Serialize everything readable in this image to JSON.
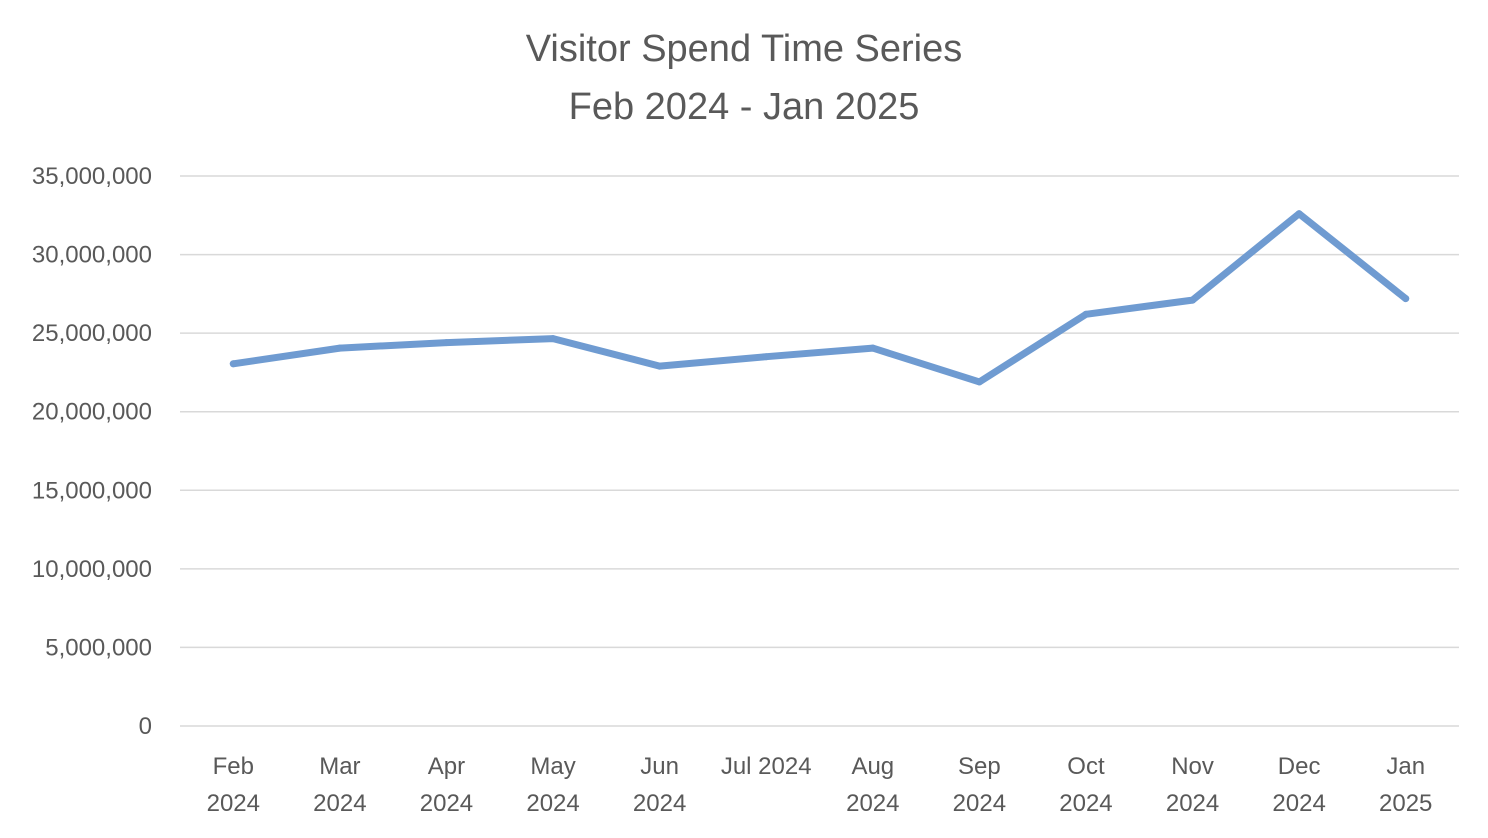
{
  "chart_data": {
    "type": "line",
    "title_lines": [
      "Visitor Spend Time Series",
      "Feb 2024 - Jan 2025"
    ],
    "categories": [
      [
        "Feb",
        "2024"
      ],
      [
        "Mar",
        "2024"
      ],
      [
        "Apr",
        "2024"
      ],
      [
        "May",
        "2024"
      ],
      [
        "Jun",
        "2024"
      ],
      [
        "Jul 2024"
      ],
      [
        "Aug",
        "2024"
      ],
      [
        "Sep",
        "2024"
      ],
      [
        "Oct",
        "2024"
      ],
      [
        "Nov",
        "2024"
      ],
      [
        "Dec",
        "2024"
      ],
      [
        "Jan",
        "2025"
      ]
    ],
    "series": [
      {
        "values": [
          23050000,
          24050000,
          24400000,
          24650000,
          22900000,
          23500000,
          24050000,
          21900000,
          26200000,
          27100000,
          32600000,
          27200000
        ],
        "color": "#6f9bd1"
      }
    ],
    "ylim": [
      0,
      35000000
    ],
    "yticks": [
      0,
      5000000,
      10000000,
      15000000,
      20000000,
      25000000,
      30000000,
      35000000
    ],
    "ytick_labels": [
      "0",
      "5,000,000",
      "10,000,000",
      "15,000,000",
      "20,000,000",
      "25,000,000",
      "30,000,000",
      "35,000,000"
    ],
    "grid": true,
    "legend": "none",
    "gridline_color": "#d9d9d9",
    "text_color": "#595959"
  }
}
